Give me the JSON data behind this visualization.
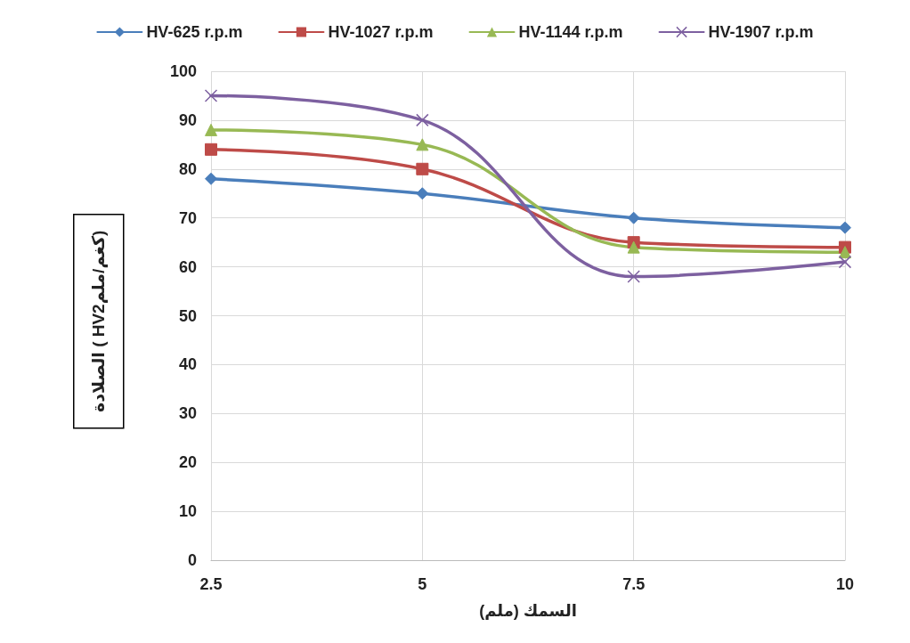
{
  "chart_data": {
    "type": "line",
    "xlabel": "السمك (ملم)",
    "ylabel": "الصلادة ( HVكغم/ملم2)",
    "categories": [
      "2.5",
      "5",
      "7.5",
      "10"
    ],
    "series": [
      {
        "name": "HV-625 r.p.m",
        "color": "#4a7ebb",
        "marker": "diamond",
        "values": [
          78,
          75,
          70,
          68
        ]
      },
      {
        "name": "HV-1027 r.p.m",
        "color": "#be4b48",
        "marker": "square",
        "values": [
          84,
          80,
          65,
          64
        ]
      },
      {
        "name": "HV-1144 r.p.m",
        "color": "#98b954",
        "marker": "triangle",
        "values": [
          88,
          85,
          64,
          63
        ]
      },
      {
        "name": "HV-1907 r.p.m",
        "color": "#7d60a0",
        "marker": "cross",
        "values": [
          95,
          90,
          58,
          61
        ]
      }
    ],
    "ylim": [
      0,
      100
    ],
    "yticks": [
      0,
      10,
      20,
      30,
      40,
      50,
      60,
      70,
      80,
      90,
      100
    ],
    "grid": true,
    "legend": "top",
    "line_style": "solid"
  }
}
